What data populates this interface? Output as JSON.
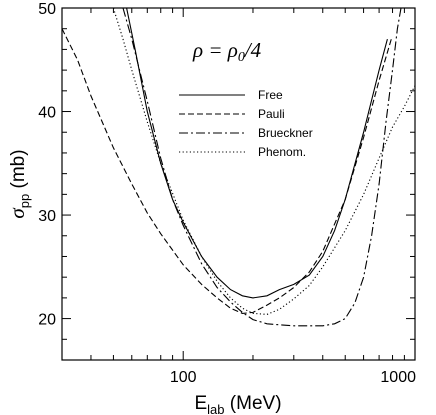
{
  "chart_data": {
    "type": "line",
    "x_scale": "log",
    "xlim": [
      30,
      1000
    ],
    "ylim": [
      16,
      50
    ],
    "xlabel": {
      "base": "E",
      "sub": "lab",
      "unit": " (MeV)"
    },
    "ylabel": {
      "symbol": "σ",
      "sub": "pp",
      "unit": " (mb)"
    },
    "x_tick_labels": [
      {
        "value": 100,
        "label": "100"
      },
      {
        "value": 1000,
        "label": "1000"
      }
    ],
    "y_tick_labels": [
      {
        "value": 20,
        "label": "20"
      },
      {
        "value": 30,
        "label": "30"
      },
      {
        "value": 40,
        "label": "40"
      },
      {
        "value": 50,
        "label": "50"
      }
    ],
    "annotation": {
      "lhs": "ρ = ρ",
      "lhs_sub": "0",
      "rhs": "/4"
    },
    "legend_position": "upper-center",
    "series": [
      {
        "name": "Free",
        "style": "solid",
        "points": [
          [
            57,
            50
          ],
          [
            62,
            46
          ],
          [
            70,
            40
          ],
          [
            80,
            35
          ],
          [
            90,
            31.5
          ],
          [
            100,
            29.3
          ],
          [
            120,
            26
          ],
          [
            140,
            24
          ],
          [
            160,
            22.8
          ],
          [
            180,
            22.2
          ],
          [
            200,
            22
          ],
          [
            230,
            22.2
          ],
          [
            260,
            22.8
          ],
          [
            300,
            23.3
          ],
          [
            350,
            24.2
          ],
          [
            400,
            26
          ],
          [
            450,
            28.5
          ],
          [
            500,
            31.5
          ],
          [
            600,
            38
          ],
          [
            700,
            44
          ],
          [
            760,
            47
          ]
        ]
      },
      {
        "name": "Pauli",
        "style": "dashed",
        "points": [
          [
            30,
            48
          ],
          [
            35,
            45
          ],
          [
            40,
            41.5
          ],
          [
            50,
            36.5
          ],
          [
            60,
            33
          ],
          [
            70,
            30.2
          ],
          [
            80,
            28.2
          ],
          [
            100,
            25.2
          ],
          [
            120,
            23.3
          ],
          [
            140,
            22
          ],
          [
            160,
            21
          ],
          [
            180,
            20.5
          ],
          [
            200,
            20.6
          ],
          [
            230,
            21.3
          ],
          [
            260,
            22
          ],
          [
            300,
            23
          ],
          [
            350,
            24.5
          ],
          [
            400,
            26.5
          ],
          [
            500,
            31.5
          ],
          [
            600,
            37.5
          ],
          [
            700,
            43
          ],
          [
            790,
            47
          ]
        ]
      },
      {
        "name": "Brueckner",
        "style": "dashdot",
        "points": [
          [
            55,
            50
          ],
          [
            60,
            47
          ],
          [
            70,
            41
          ],
          [
            80,
            35.5
          ],
          [
            90,
            31.5
          ],
          [
            100,
            29
          ],
          [
            120,
            25.3
          ],
          [
            140,
            23
          ],
          [
            160,
            21.6
          ],
          [
            180,
            20.6
          ],
          [
            200,
            19.9
          ],
          [
            230,
            19.5
          ],
          [
            260,
            19.4
          ],
          [
            300,
            19.3
          ],
          [
            350,
            19.3
          ],
          [
            400,
            19.3
          ],
          [
            450,
            19.5
          ],
          [
            500,
            20
          ],
          [
            550,
            21.5
          ],
          [
            600,
            24
          ],
          [
            650,
            28
          ],
          [
            700,
            33
          ],
          [
            750,
            39
          ],
          [
            800,
            44
          ],
          [
            840,
            48
          ],
          [
            870,
            50
          ]
        ]
      },
      {
        "name": "Phenom.",
        "style": "dotted",
        "points": [
          [
            50,
            50
          ],
          [
            55,
            47
          ],
          [
            60,
            44
          ],
          [
            70,
            39
          ],
          [
            80,
            35
          ],
          [
            100,
            29.5
          ],
          [
            120,
            26
          ],
          [
            140,
            23.6
          ],
          [
            160,
            22
          ],
          [
            180,
            21
          ],
          [
            200,
            20.5
          ],
          [
            230,
            20.4
          ],
          [
            260,
            20.9
          ],
          [
            300,
            21.9
          ],
          [
            350,
            23.2
          ],
          [
            400,
            25
          ],
          [
            500,
            28.5
          ],
          [
            600,
            32
          ],
          [
            700,
            35.5
          ],
          [
            800,
            38.5
          ],
          [
            900,
            40.5
          ],
          [
            1000,
            42.5
          ]
        ]
      }
    ]
  }
}
